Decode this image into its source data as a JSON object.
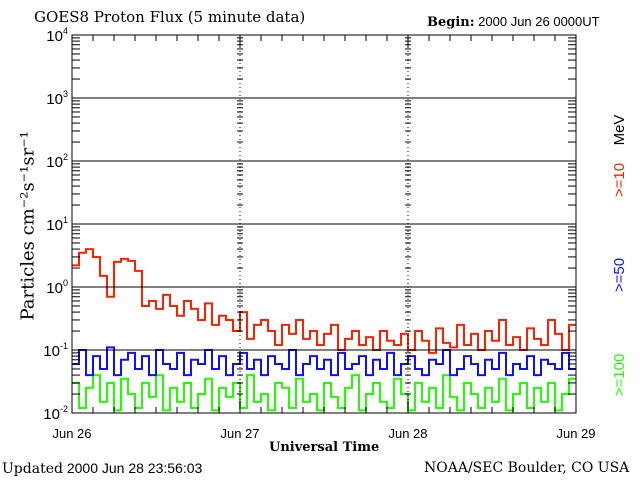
{
  "header": {
    "title": "GOES8 Proton Flux (5 minute data)",
    "begin_label": "Begin:",
    "begin_value": "2000 Jun 26 0000UT"
  },
  "footer": {
    "updated_label": "Updated",
    "updated_value": "2000 Jun 28 23:56:03",
    "credit": "NOAA/SEC Boulder, CO USA"
  },
  "chart_data": {
    "type": "line",
    "title": "GOES8 Proton Flux (5 minute data)",
    "xlabel": "Universal Time",
    "ylabel": "Particles cm⁻²s⁻¹sr⁻¹",
    "yscale": "log",
    "ylim": [
      0.01,
      10000
    ],
    "xlim_hours": [
      0,
      72
    ],
    "ytick_base": "10",
    "ytick_exponents": [
      "4",
      "3",
      "2",
      "1",
      "0",
      "-1",
      "-2"
    ],
    "xtick_labels": [
      "Jun 26",
      "Jun 27",
      "Jun 28",
      "Jun 29"
    ],
    "grid": "horizontal at each decade",
    "legend_position": "right",
    "legend_unit": "MeV",
    "series": [
      {
        "name": ">=10",
        "color": "#ff2000",
        "values": [
          2.2,
          3.5,
          4.0,
          3.0,
          1.5,
          0.7,
          2.5,
          2.8,
          2.6,
          1.8,
          0.5,
          0.6,
          0.45,
          0.75,
          0.5,
          0.35,
          0.6,
          0.45,
          0.3,
          0.55,
          0.25,
          0.35,
          0.3,
          0.2,
          0.4,
          0.15,
          0.25,
          0.3,
          0.2,
          0.12,
          0.25,
          0.18,
          0.3,
          0.15,
          0.2,
          0.12,
          0.18,
          0.25,
          0.1,
          0.15,
          0.2,
          0.12,
          0.16,
          0.1,
          0.2,
          0.14,
          0.12,
          0.18,
          0.1,
          0.2,
          0.14,
          0.09,
          0.22,
          0.13,
          0.11,
          0.25,
          0.12,
          0.18,
          0.1,
          0.2,
          0.14,
          0.3,
          0.12,
          0.16,
          0.1,
          0.22,
          0.15,
          0.12,
          0.3,
          0.18,
          0.1,
          0.25
        ]
      },
      {
        "name": ">=50",
        "color": "#1010ff",
        "values": [
          0.06,
          0.1,
          0.04,
          0.08,
          0.05,
          0.11,
          0.04,
          0.07,
          0.09,
          0.05,
          0.08,
          0.04,
          0.1,
          0.06,
          0.05,
          0.09,
          0.04,
          0.07,
          0.06,
          0.1,
          0.05,
          0.08,
          0.04,
          0.06,
          0.09,
          0.05,
          0.07,
          0.04,
          0.08,
          0.06,
          0.05,
          0.1,
          0.04,
          0.06,
          0.08,
          0.05,
          0.07,
          0.04,
          0.09,
          0.05,
          0.06,
          0.08,
          0.04,
          0.07,
          0.05,
          0.09,
          0.04,
          0.06,
          0.08,
          0.05,
          0.04,
          0.07,
          0.06,
          0.1,
          0.04,
          0.05,
          0.08,
          0.06,
          0.04,
          0.07,
          0.05,
          0.09,
          0.04,
          0.06,
          0.05,
          0.08,
          0.04,
          0.07,
          0.06,
          0.05,
          0.09,
          0.05
        ]
      },
      {
        "name": ">=100",
        "color": "#20ff00",
        "values": [
          0.03,
          0.012,
          0.025,
          0.04,
          0.015,
          0.03,
          0.011,
          0.035,
          0.02,
          0.012,
          0.03,
          0.018,
          0.04,
          0.011,
          0.025,
          0.015,
          0.03,
          0.012,
          0.02,
          0.035,
          0.011,
          0.025,
          0.018,
          0.03,
          0.012,
          0.04,
          0.015,
          0.02,
          0.011,
          0.03,
          0.025,
          0.012,
          0.035,
          0.015,
          0.02,
          0.011,
          0.03,
          0.018,
          0.012,
          0.025,
          0.04,
          0.011,
          0.02,
          0.03,
          0.015,
          0.012,
          0.035,
          0.02,
          0.011,
          0.03,
          0.015,
          0.025,
          0.012,
          0.04,
          0.018,
          0.011,
          0.03,
          0.02,
          0.012,
          0.025,
          0.015,
          0.035,
          0.011,
          0.02,
          0.03,
          0.012,
          0.025,
          0.015,
          0.03,
          0.011,
          0.02,
          0.035
        ]
      }
    ]
  }
}
